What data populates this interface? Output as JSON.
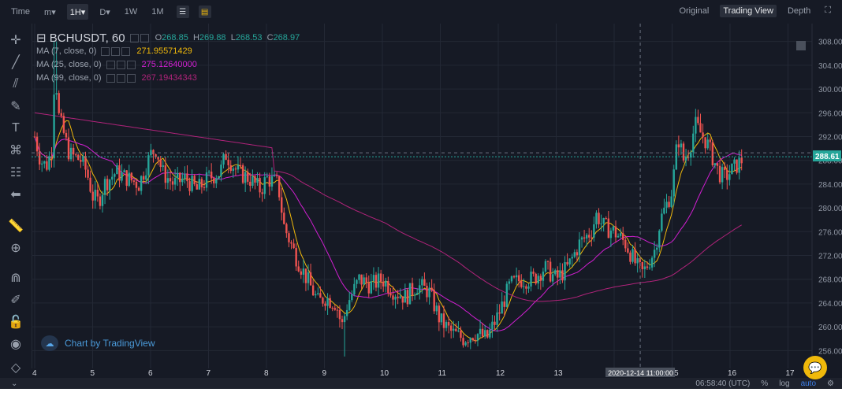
{
  "topbar": {
    "items": [
      {
        "label": "Time",
        "active": false
      },
      {
        "label": "m▾",
        "active": false
      },
      {
        "label": "1H▾",
        "active": true
      },
      {
        "label": "D▾",
        "active": false
      },
      {
        "label": "1W",
        "active": false
      },
      {
        "label": "1M",
        "active": false
      }
    ],
    "icons": [
      "indicators-icon",
      "settings-icon"
    ],
    "right": [
      {
        "label": "Original",
        "active": false
      },
      {
        "label": "Trading View",
        "active": true
      },
      {
        "label": "Depth",
        "active": false
      }
    ]
  },
  "legend": {
    "symbol": "BCHUSDT, 60",
    "ohlc": [
      {
        "k": "O",
        "v": "268.85"
      },
      {
        "k": "H",
        "v": "269.88"
      },
      {
        "k": "L",
        "v": "268.53"
      },
      {
        "k": "C",
        "v": "268.97"
      }
    ],
    "ma": [
      {
        "label": "MA (7, close, 0)",
        "value": "271.95571429",
        "color": "#f0b90b"
      },
      {
        "label": "MA (25, close, 0)",
        "value": "275.12640000",
        "color": "#d11fd1"
      },
      {
        "label": "MA (99, close, 0)",
        "value": "267.19434343",
        "color": "#b0237a"
      }
    ]
  },
  "watermark": "Chart by TradingView",
  "status": {
    "time": "06:58:40 (UTC)",
    "pct": "%",
    "log": "log",
    "auto": "auto"
  },
  "chart_data": {
    "type": "candlestick",
    "symbol": "BCHUSDT",
    "interval": "60",
    "current_price": "288.61",
    "crosshair_label": "2020-12-14 11:00:00",
    "x_ticks": [
      "4",
      "5",
      "6",
      "7",
      "8",
      "9",
      "10",
      "11",
      "12",
      "13",
      "14",
      "15",
      "16",
      "17"
    ],
    "y_ticks": [
      256,
      260,
      264,
      268,
      272,
      276,
      280,
      284,
      288,
      292,
      296,
      300,
      304,
      308
    ],
    "ylim": [
      253,
      311
    ],
    "grid": true,
    "close_path": [
      [
        4.0,
        292
      ],
      [
        4.1,
        288
      ],
      [
        4.2,
        287
      ],
      [
        4.3,
        290
      ],
      [
        4.35,
        305
      ],
      [
        4.4,
        296
      ],
      [
        4.6,
        289
      ],
      [
        4.8,
        288
      ],
      [
        4.9,
        286
      ],
      [
        5.0,
        282
      ],
      [
        5.1,
        281
      ],
      [
        5.2,
        284
      ],
      [
        5.4,
        286
      ],
      [
        5.6,
        285
      ],
      [
        5.8,
        284
      ],
      [
        6.0,
        289
      ],
      [
        6.1,
        290
      ],
      [
        6.2,
        286
      ],
      [
        6.4,
        284
      ],
      [
        6.6,
        285
      ],
      [
        6.8,
        283
      ],
      [
        7.0,
        285
      ],
      [
        7.2,
        286
      ],
      [
        7.3,
        289
      ],
      [
        7.5,
        286
      ],
      [
        7.7,
        285
      ],
      [
        7.9,
        283
      ],
      [
        8.0,
        285
      ],
      [
        8.2,
        284
      ],
      [
        8.3,
        277
      ],
      [
        8.5,
        272
      ],
      [
        8.7,
        268
      ],
      [
        8.9,
        264
      ],
      [
        9.0,
        265
      ],
      [
        9.2,
        264
      ],
      [
        9.3,
        260
      ],
      [
        9.4,
        264
      ],
      [
        9.6,
        268
      ],
      [
        9.8,
        267
      ],
      [
        10.0,
        268
      ],
      [
        10.2,
        266
      ],
      [
        10.4,
        265
      ],
      [
        10.6,
        267
      ],
      [
        10.8,
        266
      ],
      [
        11.0,
        261
      ],
      [
        11.2,
        259
      ],
      [
        11.4,
        258
      ],
      [
        11.6,
        259
      ],
      [
        11.8,
        258
      ],
      [
        12.0,
        262
      ],
      [
        12.2,
        267
      ],
      [
        12.4,
        268
      ],
      [
        12.6,
        268
      ],
      [
        12.8,
        270
      ],
      [
        13.0,
        268
      ],
      [
        13.2,
        270
      ],
      [
        13.4,
        274
      ],
      [
        13.6,
        276
      ],
      [
        13.7,
        279
      ],
      [
        13.8,
        277
      ],
      [
        14.0,
        276
      ],
      [
        14.2,
        274
      ],
      [
        14.3,
        272
      ],
      [
        14.4,
        270
      ],
      [
        14.5,
        269
      ],
      [
        14.7,
        273
      ],
      [
        14.8,
        278
      ],
      [
        15.0,
        283
      ],
      [
        15.1,
        292
      ],
      [
        15.2,
        288
      ],
      [
        15.3,
        290
      ],
      [
        15.4,
        294
      ],
      [
        15.6,
        291
      ],
      [
        15.8,
        286
      ],
      [
        15.9,
        285
      ],
      [
        16.0,
        286
      ],
      [
        16.2,
        288
      ]
    ],
    "series": [
      {
        "name": "MA (7, close, 0)",
        "color": "#f0b90b",
        "role": "fast"
      },
      {
        "name": "MA (25, close, 0)",
        "color": "#d11fd1",
        "role": "medium"
      },
      {
        "name": "MA (99, close, 0)",
        "color": "#b0237a",
        "role": "slow"
      }
    ],
    "up_color": "#26a69a",
    "down_color": "#ef5350"
  }
}
